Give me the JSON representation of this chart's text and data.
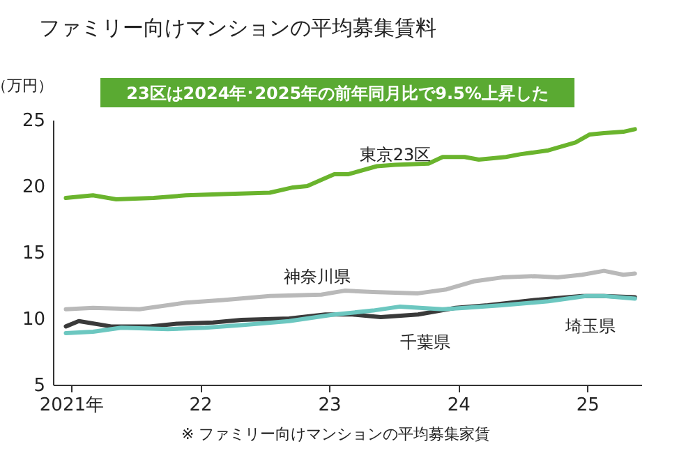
{
  "chart_data": {
    "type": "line",
    "title": "ファミリー向けマンションの平均募集賃料",
    "subtitle": "23区は2024年･2025年の前年同月比で9.5%上昇した",
    "ylabel": "（万円）",
    "annotations": [
      "※ ファミリー向けマンションの平均募集家賃"
    ],
    "xlim": [
      2020.86,
      2025.42
    ],
    "xticks": [
      {
        "value": 2021,
        "label": "2021年"
      },
      {
        "value": 2022,
        "label": "22"
      },
      {
        "value": 2023,
        "label": "23"
      },
      {
        "value": 2024,
        "label": "24"
      },
      {
        "value": 2025,
        "label": "25"
      }
    ],
    "ylim": [
      5,
      25
    ],
    "yticks": [
      5,
      10,
      15,
      20,
      25
    ],
    "grid": false,
    "line_style": "solid",
    "marker": "none",
    "series": [
      {
        "name": "東京23区",
        "color": "#6ab42d",
        "x": [
          2020.96,
          2021.17,
          2021.35,
          2021.64,
          2021.89,
          2022.18,
          2022.54,
          2022.72,
          2022.83,
          2023.04,
          2023.15,
          2023.37,
          2023.51,
          2023.77,
          2023.88,
          2024.05,
          2024.16,
          2024.37,
          2024.48,
          2024.7,
          2024.91,
          2025.02,
          2025.13,
          2025.28,
          2025.37
        ],
        "values": [
          19.1,
          19.3,
          19.0,
          19.1,
          19.3,
          19.4,
          19.5,
          19.9,
          20.0,
          20.9,
          20.9,
          21.5,
          21.6,
          21.7,
          22.2,
          22.2,
          22.0,
          22.2,
          22.4,
          22.7,
          23.3,
          23.9,
          24.0,
          24.1,
          24.3
        ]
      },
      {
        "name": "神奈川県",
        "color": "#b9b9b9",
        "x": [
          2020.96,
          2021.17,
          2021.53,
          2021.89,
          2022.18,
          2022.54,
          2022.94,
          2023.12,
          2023.34,
          2023.69,
          2023.91,
          2024.12,
          2024.34,
          2024.59,
          2024.77,
          2024.96,
          2025.13,
          2025.28,
          2025.37
        ],
        "values": [
          10.7,
          10.8,
          10.7,
          11.2,
          11.4,
          11.7,
          11.8,
          12.1,
          12.0,
          11.9,
          12.2,
          12.8,
          13.1,
          13.2,
          13.1,
          13.3,
          13.6,
          13.3,
          13.4
        ]
      },
      {
        "name": "千葉県",
        "color": "#3a3a3a",
        "x": [
          2020.96,
          2021.06,
          2021.31,
          2021.61,
          2021.82,
          2022.1,
          2022.32,
          2022.69,
          2022.97,
          2023.18,
          2023.4,
          2023.69,
          2023.98,
          2024.23,
          2024.59,
          2024.96,
          2025.13,
          2025.37
        ],
        "values": [
          9.4,
          9.8,
          9.4,
          9.4,
          9.6,
          9.7,
          9.9,
          10.0,
          10.3,
          10.3,
          10.1,
          10.3,
          10.8,
          11.0,
          11.4,
          11.7,
          11.7,
          11.6
        ]
      },
      {
        "name": "埼玉県",
        "color": "#6cc7c0",
        "x": [
          2020.96,
          2021.17,
          2021.39,
          2021.75,
          2022.04,
          2022.32,
          2022.69,
          2023.04,
          2023.34,
          2023.55,
          2023.88,
          2024.05,
          2024.34,
          2024.7,
          2024.99,
          2025.13,
          2025.37
        ],
        "values": [
          8.9,
          9.0,
          9.3,
          9.2,
          9.3,
          9.5,
          9.8,
          10.3,
          10.6,
          10.9,
          10.7,
          10.8,
          11.0,
          11.3,
          11.7,
          11.7,
          11.5
        ]
      }
    ]
  }
}
